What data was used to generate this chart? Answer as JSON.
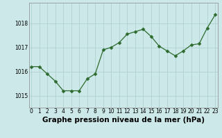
{
  "x": [
    0,
    1,
    2,
    3,
    4,
    5,
    6,
    7,
    8,
    9,
    10,
    11,
    12,
    13,
    14,
    15,
    16,
    17,
    18,
    19,
    20,
    21,
    22,
    23
  ],
  "y": [
    1016.2,
    1016.2,
    1015.9,
    1015.6,
    1015.2,
    1015.2,
    1015.2,
    1015.7,
    1015.9,
    1016.9,
    1017.0,
    1017.2,
    1017.55,
    1017.65,
    1017.75,
    1017.45,
    1017.05,
    1016.85,
    1016.65,
    1016.85,
    1017.1,
    1017.15,
    1017.8,
    1018.35
  ],
  "line_color": "#2d6a2d",
  "marker": "D",
  "marker_size": 2.5,
  "bg_color": "#cce8e8",
  "grid_color": "#aacece",
  "title": "Graphe pression niveau de la mer (hPa)",
  "ylim": [
    1014.5,
    1018.85
  ],
  "yticks": [
    1015,
    1016,
    1017,
    1018
  ],
  "xticks": [
    0,
    1,
    2,
    3,
    4,
    5,
    6,
    7,
    8,
    9,
    10,
    11,
    12,
    13,
    14,
    15,
    16,
    17,
    18,
    19,
    20,
    21,
    22,
    23
  ],
  "tick_fontsize": 5.5,
  "title_fontsize": 7.5,
  "title_fontweight": "bold",
  "xlim": [
    -0.3,
    23.3
  ]
}
